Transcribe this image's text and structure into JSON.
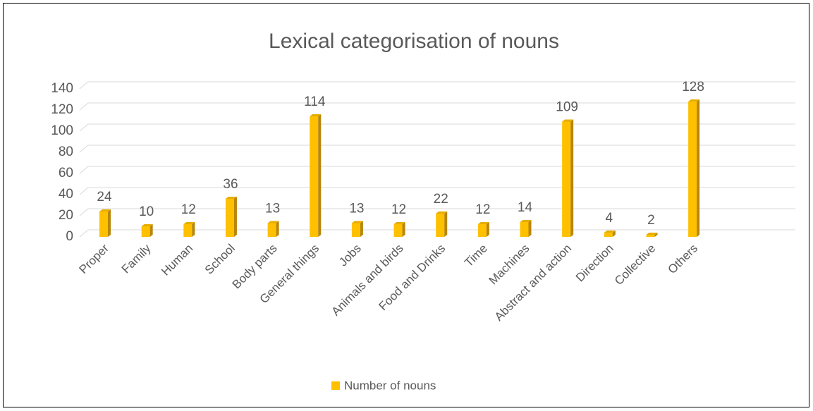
{
  "chart_data": {
    "type": "bar",
    "title": "Lexical categorisation of nouns",
    "categories": [
      "Proper",
      "Family",
      "Human",
      "School",
      "Body parts",
      "General things",
      "Jobs",
      "Animals and birds",
      "Food and Drinks",
      "Time",
      "Machines",
      "Abstract and action",
      "Direction",
      "Collective",
      "Others"
    ],
    "series": [
      {
        "name": "Number of nouns",
        "color": "#ffc000",
        "values": [
          24,
          10,
          12,
          36,
          13,
          114,
          13,
          12,
          22,
          12,
          14,
          109,
          4,
          2,
          128
        ]
      }
    ],
    "ylim": [
      0,
      140
    ],
    "yticks": [
      0,
      20,
      40,
      60,
      80,
      100,
      120,
      140
    ],
    "grid": true,
    "legend": "bottom"
  }
}
